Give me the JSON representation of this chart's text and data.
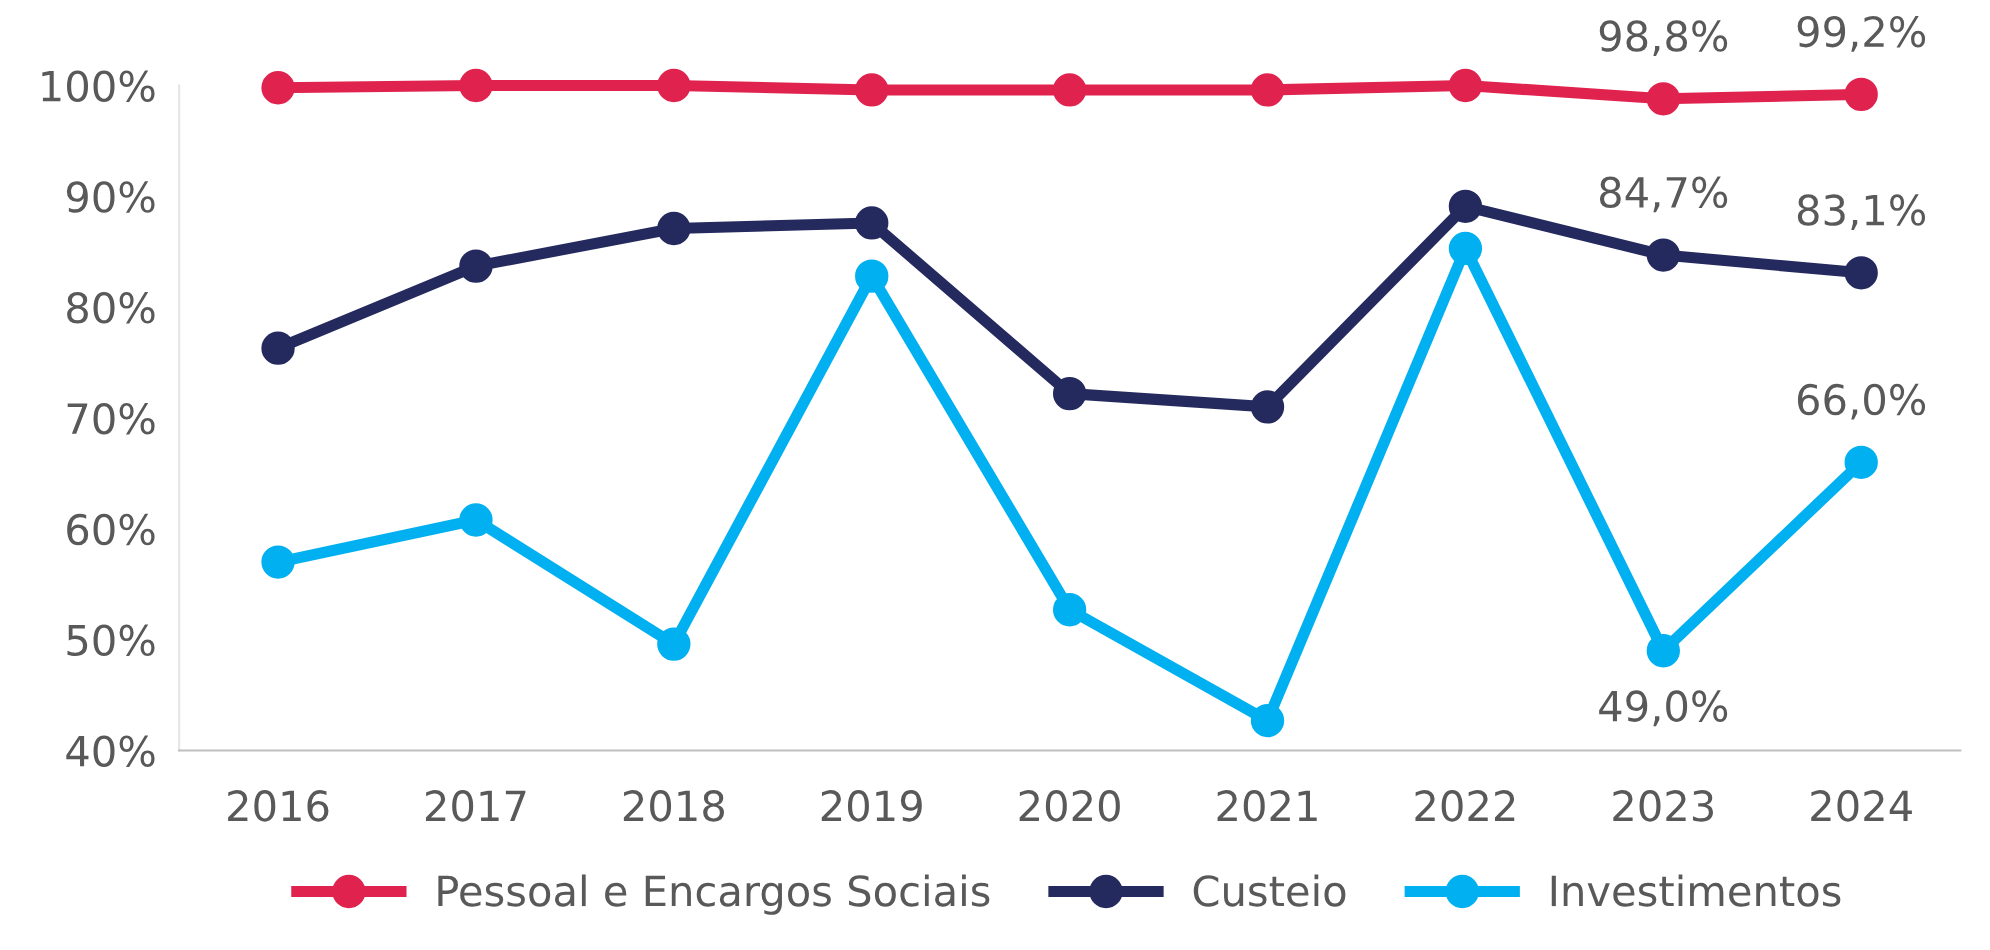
{
  "chart_data": {
    "type": "line",
    "categories": [
      "2016",
      "2017",
      "2018",
      "2019",
      "2020",
      "2021",
      "2022",
      "2023",
      "2024"
    ],
    "series": [
      {
        "name": "Pessoal e Encargos Sociais",
        "color": "#e0234e",
        "values": [
          99.8,
          100.0,
          100.0,
          99.6,
          99.6,
          99.6,
          100.0,
          98.8,
          99.2
        ],
        "value_labels": [
          null,
          null,
          null,
          null,
          null,
          null,
          null,
          "98,8%",
          "99,2%"
        ]
      },
      {
        "name": "Custeio",
        "color": "#252a5e",
        "values": [
          76.3,
          83.7,
          87.1,
          87.6,
          72.2,
          71.0,
          89.1,
          84.7,
          83.1
        ],
        "value_labels": [
          null,
          null,
          null,
          null,
          null,
          null,
          null,
          "84,7%",
          "83,1%"
        ]
      },
      {
        "name": "Investimentos",
        "color": "#00b0f0",
        "values": [
          57.0,
          60.8,
          49.6,
          82.8,
          52.7,
          42.7,
          85.3,
          49.0,
          66.0
        ],
        "value_labels": [
          null,
          null,
          null,
          null,
          null,
          null,
          null,
          "49,0%",
          "66,0%"
        ]
      }
    ],
    "ylim": [
      40,
      100
    ],
    "yticks": [
      {
        "value": 40,
        "label": "40%"
      },
      {
        "value": 50,
        "label": "50%"
      },
      {
        "value": 60,
        "label": "60%"
      },
      {
        "value": 70,
        "label": "70%"
      },
      {
        "value": 80,
        "label": "80%"
      },
      {
        "value": 90,
        "label": "90%"
      },
      {
        "value": 100,
        "label": "100%"
      }
    ],
    "grid": false,
    "legend": "bottom",
    "marker": "circle",
    "line_style": "solid"
  }
}
